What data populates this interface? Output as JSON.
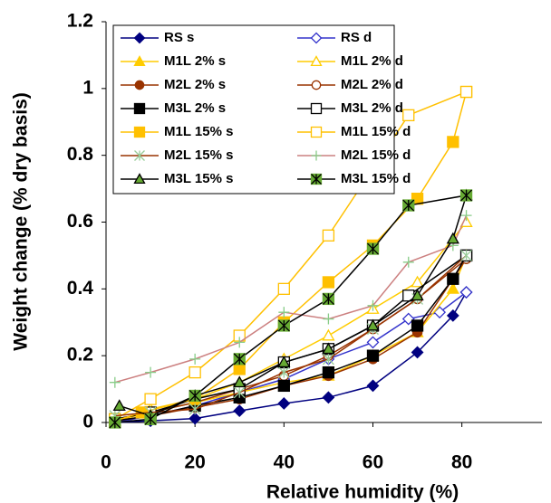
{
  "chart_data": {
    "type": "line",
    "xlabel": "Relative humidity (%)",
    "ylabel": "Weight change (% dry basis)",
    "xlim": [
      0,
      98
    ],
    "xticks": [
      0,
      20,
      40,
      60,
      80
    ],
    "ylim": [
      0,
      1.2
    ],
    "yticks": [
      0,
      0.2,
      0.4,
      0.6,
      0.8,
      1,
      1.2
    ],
    "legend": "top-left",
    "series": [
      {
        "name": "RS s",
        "color": "#000080",
        "marker": "diamond",
        "filled": true,
        "x": [
          2,
          10,
          20,
          30,
          40,
          50,
          60,
          70,
          78,
          81
        ],
        "values": [
          0,
          0.005,
          0.012,
          0.035,
          0.057,
          0.075,
          0.11,
          0.21,
          0.32,
          0.39
        ]
      },
      {
        "name": "RS d",
        "color": "#3333cc",
        "marker": "diamond",
        "filled": false,
        "x": [
          2,
          10,
          20,
          30,
          40,
          50,
          60,
          68,
          75,
          81
        ],
        "values": [
          0,
          0.02,
          0.05,
          0.09,
          0.13,
          0.19,
          0.24,
          0.31,
          0.33,
          0.39
        ]
      },
      {
        "name": "M1L 2% s",
        "color": "#ffcc00",
        "marker": "triangle",
        "filled": true,
        "x": [
          2,
          10,
          20,
          30,
          40,
          50,
          60,
          70,
          78,
          81
        ],
        "values": [
          0.005,
          0.03,
          0.06,
          0.09,
          0.12,
          0.14,
          0.2,
          0.27,
          0.4,
          0.5
        ]
      },
      {
        "name": "M1L 2% d",
        "color": "#ffcc00",
        "marker": "triangle",
        "filled": false,
        "x": [
          2,
          10,
          20,
          30,
          40,
          50,
          60,
          70,
          81
        ],
        "values": [
          0,
          0.04,
          0.07,
          0.12,
          0.19,
          0.26,
          0.34,
          0.42,
          0.6
        ]
      },
      {
        "name": "M2L 2% s",
        "color": "#993300",
        "marker": "circle",
        "filled": true,
        "x": [
          2,
          10,
          20,
          30,
          40,
          50,
          60,
          70,
          78,
          81
        ],
        "values": [
          0.005,
          0.02,
          0.045,
          0.07,
          0.11,
          0.14,
          0.19,
          0.27,
          0.43,
          0.49
        ]
      },
      {
        "name": "M2L 2% d",
        "color": "#993300",
        "marker": "circle",
        "filled": false,
        "x": [
          2,
          10,
          20,
          30,
          40,
          50,
          60,
          70,
          81
        ],
        "values": [
          0.01,
          0.03,
          0.06,
          0.1,
          0.14,
          0.2,
          0.28,
          0.37,
          0.49
        ]
      },
      {
        "name": "M3L 2% s",
        "color": "#000000",
        "marker": "square",
        "filled": true,
        "x": [
          2,
          10,
          20,
          30,
          40,
          50,
          60,
          70,
          78,
          81
        ],
        "values": [
          0.005,
          0.02,
          0.05,
          0.075,
          0.11,
          0.15,
          0.2,
          0.29,
          0.43,
          0.5
        ]
      },
      {
        "name": "M3L 2% d",
        "color": "#000000",
        "marker": "square",
        "filled": false,
        "x": [
          2,
          10,
          20,
          30,
          40,
          50,
          60,
          68,
          81
        ],
        "values": [
          0.01,
          0.03,
          0.07,
          0.1,
          0.18,
          0.22,
          0.29,
          0.38,
          0.5
        ]
      },
      {
        "name": "M1L 15% s",
        "color": "#ffc000",
        "marker": "square",
        "filled": true,
        "x": [
          2,
          8,
          20,
          30,
          40,
          50,
          60,
          70,
          78,
          81
        ],
        "values": [
          0.005,
          0.03,
          0.07,
          0.16,
          0.3,
          0.42,
          0.53,
          0.67,
          0.84,
          0.99
        ]
      },
      {
        "name": "M1L 15% d",
        "color": "#ffc000",
        "marker": "square",
        "filled": false,
        "x": [
          2,
          10,
          20,
          30,
          40,
          50,
          60,
          68,
          81
        ],
        "values": [
          0.01,
          0.07,
          0.15,
          0.26,
          0.4,
          0.56,
          0.76,
          0.92,
          0.99
        ]
      },
      {
        "name": "M2L 15% s",
        "color": "#993300",
        "marker_color": "#99cc99",
        "marker": "asterisk",
        "filled": false,
        "x": [
          2,
          10,
          20,
          30,
          40,
          50,
          60,
          70,
          81
        ],
        "values": [
          0.02,
          0.03,
          0.04,
          0.09,
          0.15,
          0.19,
          0.28,
          0.37,
          0.5
        ]
      },
      {
        "name": "M2L 15% d",
        "color": "#cc8080",
        "marker_color": "#88cc88",
        "marker": "plus",
        "filled": false,
        "x": [
          2,
          10,
          20,
          30,
          40,
          50,
          60,
          68,
          78,
          81
        ],
        "values": [
          0.12,
          0.15,
          0.19,
          0.24,
          0.33,
          0.31,
          0.35,
          0.48,
          0.53,
          0.62
        ]
      },
      {
        "name": "M3L 15% s",
        "color": "#000000",
        "marker_color": "#66aa33",
        "marker": "triangle",
        "filled": true,
        "x": [
          3,
          10,
          20,
          30,
          40,
          50,
          60,
          70,
          78,
          81
        ],
        "values": [
          0.05,
          0.02,
          0.08,
          0.12,
          0.18,
          0.22,
          0.29,
          0.38,
          0.55,
          0.68
        ]
      },
      {
        "name": "M3L 15% d",
        "color": "#000000",
        "marker_color": "#66aa33",
        "marker": "starbox",
        "filled": true,
        "x": [
          2,
          10,
          20,
          30,
          40,
          50,
          60,
          68,
          81
        ],
        "values": [
          0,
          0.01,
          0.08,
          0.19,
          0.29,
          0.37,
          0.52,
          0.65,
          0.68
        ]
      }
    ]
  }
}
